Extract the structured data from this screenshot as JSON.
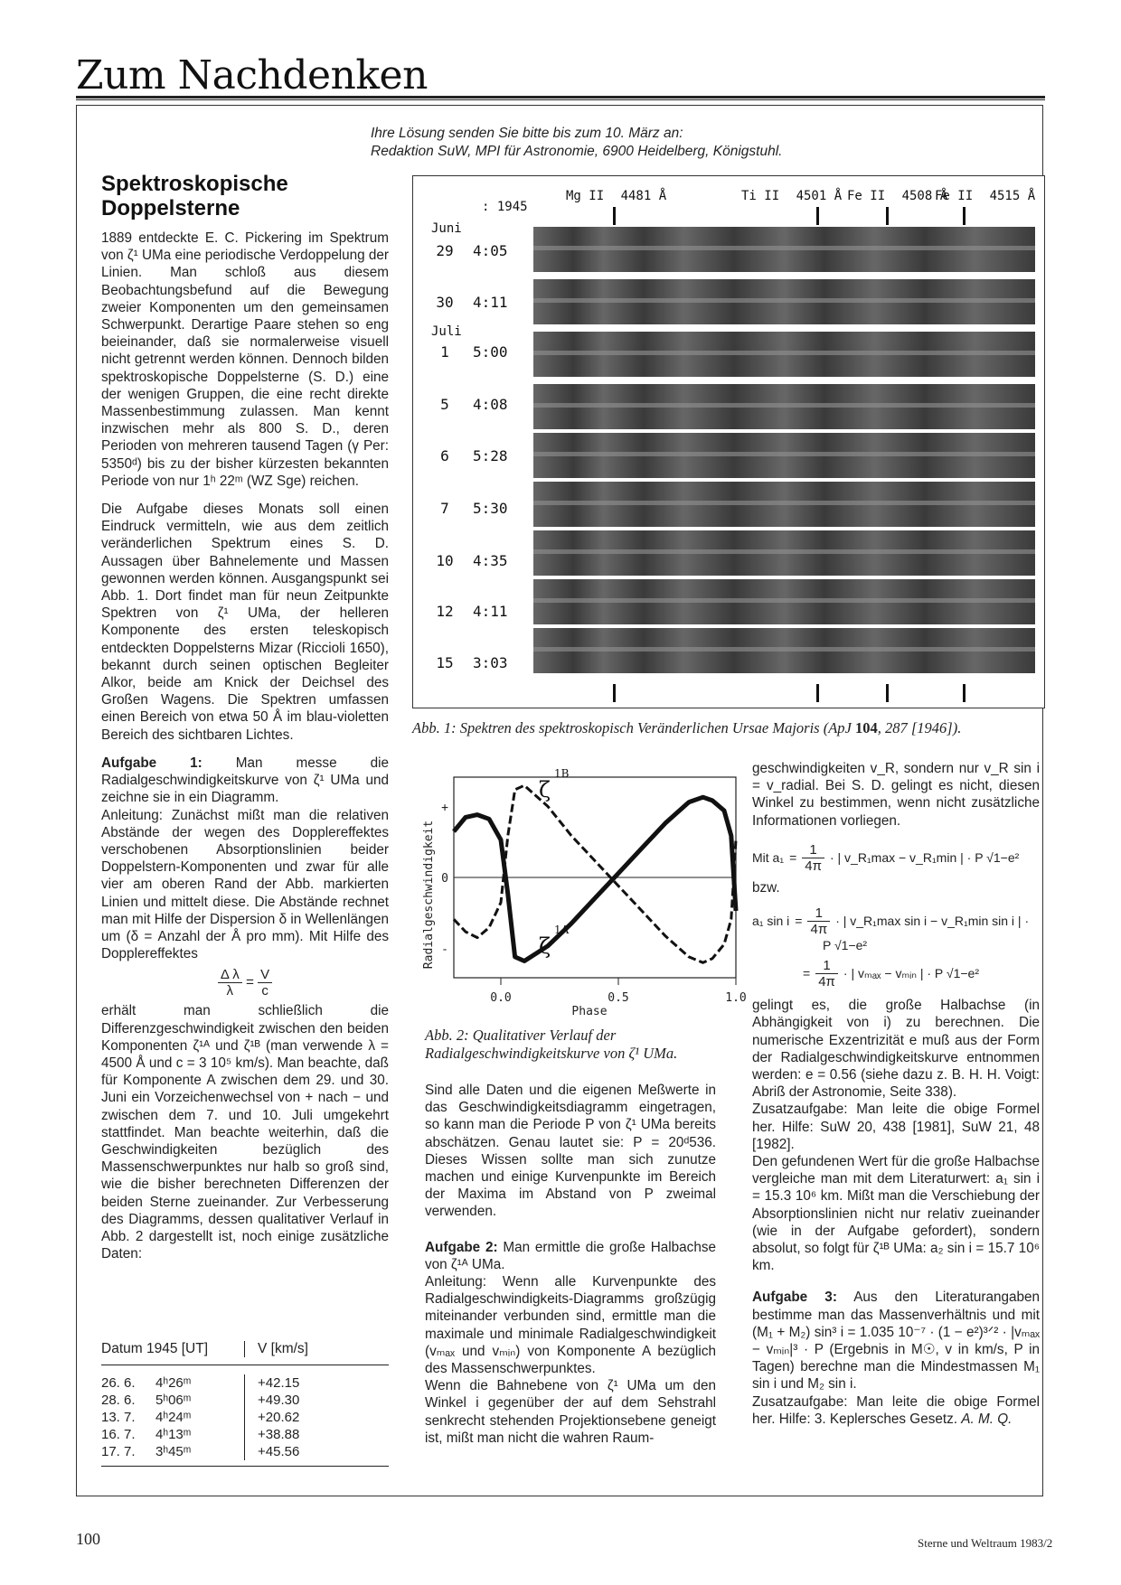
{
  "page_header": {
    "section_title": "Zum Nachdenken"
  },
  "article": {
    "title_l1": "Spektroskopische",
    "title_l2": "Doppelsterne",
    "intro_l1": "Ihre Lösung senden Sie bitte bis zum 10. März an:",
    "intro_l2": "Redaktion SuW, MPI für Astronomie, 6900 Heidelberg, Königstuhl.",
    "col1": {
      "p1": "1889 entdeckte E. C. Pickering im Spektrum von ζ¹ UMa eine periodische Verdoppelung der Linien. Man schloß aus diesem Beobachtungsbefund auf die Bewegung zweier Komponenten um den gemeinsamen Schwerpunkt. Derartige Paare stehen so eng beieinander, daß sie normalerweise visuell nicht getrennt werden können. Dennoch bilden spektroskopische Doppelsterne (S. D.) eine der wenigen Gruppen, die eine recht direkte Massenbestimmung zulassen. Man kennt inzwischen mehr als 800 S. D., deren Perioden von mehreren tausend Tagen (γ Per: 5350ᵈ) bis zu der bisher kürzesten bekannten Periode von nur 1ʰ 22ᵐ (WZ Sge) reichen.",
      "p2": "Die Aufgabe dieses Monats soll einen Eindruck vermitteln, wie aus dem zeitlich veränderlichen Spektrum eines S. D. Aussagen über Bahnelemente und Massen gewonnen werden können. Ausgangspunkt sei Abb. 1. Dort findet man für neun Zeitpunkte Spektren von ζ¹ UMa, der helleren Komponente des ersten teleskopisch entdeckten Doppelsterns Mizar (Riccioli 1650), bekannt durch seinen optischen Begleiter Alkor, beide am Knick der Deichsel des Großen Wagens. Die Spektren umfassen einen Bereich von etwa 50 Å im blau-violetten Bereich des sichtbaren Lichtes.",
      "a1_label": "Aufgabe 1:",
      "a1_text": " Man messe die Radialgeschwindigkeitskurve von ζ¹ UMa und zeichne sie in ein Diagramm.",
      "a1_hint": "Anleitung: Zunächst mißt man die relativen Abstände der wegen des Dopplereffektes verschobenen Absorptionslinien beider Doppelstern-Komponenten und zwar für alle vier am oberen Rand der Abb. markierten Linien und mittelt diese. Die Abstände rechnet man mit Hilfe der Dispersion δ in Wellenlängen um (δ = Anzahl der Å pro mm). Mit Hilfe des Dopplereffektes",
      "f_num_l": "Δ λ",
      "f_den_l": "λ",
      "f_eq": "=",
      "f_num_r": "V",
      "f_den_r": "c",
      "p3": "erhält man schließlich die Differenzgeschwindigkeit zwischen den beiden Komponenten ζ¹ᴬ und ζ¹ᴮ (man verwende λ = 4500 Å und c = 3 10⁵ km/s). Man beachte, daß für Komponente A zwischen dem 29. und 30. Juni ein Vorzeichenwechsel von + nach − und zwischen dem 7. und 10. Juli umgekehrt stattfindet. Man beachte weiterhin, daß die Geschwindigkeiten bezüglich des Massenschwerpunktes nur halb so groß sind, wie die bisher berechneten Differenzen der beiden Sterne zueinander. Zur Verbesserung des Diagramms, dessen qualitativer Verlauf in Abb. 2 dargestellt ist, noch einige zusätzliche Daten:",
      "table": {
        "h1": "Datum 1945 [UT]",
        "h2": "V [km/s]",
        "rows": [
          {
            "d": "26. 6.",
            "t": "4ʰ26ᵐ",
            "v": "+42.15"
          },
          {
            "d": "28. 6.",
            "t": "5ʰ06ᵐ",
            "v": "+49.30"
          },
          {
            "d": "13. 7.",
            "t": "4ʰ24ᵐ",
            "v": "+20.62"
          },
          {
            "d": "16. 7.",
            "t": "4ʰ13ᵐ",
            "v": "+38.88"
          },
          {
            "d": "17. 7.",
            "t": "3ʰ45ᵐ",
            "v": "+45.56"
          }
        ]
      }
    },
    "fig1": {
      "year": ": 1945",
      "month1": "Juni",
      "month2": "Juli",
      "lines": [
        {
          "el": "Mg II",
          "wl": "4481 Å"
        },
        {
          "el": "Ti II",
          "wl": "4501 Å"
        },
        {
          "el": "Fe II",
          "wl": "4508 Å"
        },
        {
          "el": "Fe II",
          "wl": "4515 Å"
        }
      ],
      "rows": [
        {
          "day": "29",
          "time": "4:05"
        },
        {
          "day": "30",
          "time": "4:11"
        },
        {
          "day": "1",
          "time": "5:00"
        },
        {
          "day": "5",
          "time": "4:08"
        },
        {
          "day": "6",
          "time": "5:28"
        },
        {
          "day": "7",
          "time": "5:30"
        },
        {
          "day": "10",
          "time": "4:35"
        },
        {
          "day": "12",
          "time": "4:11"
        },
        {
          "day": "15",
          "time": "3:03"
        }
      ],
      "caption_a": "Abb. 1: Spektren des spektroskopisch Veränderlichen Ursae Majoris (ApJ ",
      "caption_b": "104",
      "caption_c": ", 287 [1946]).",
      "colors": {
        "plate_dark": "#2a2a2a",
        "plate_mid": "#5a5a5a",
        "plate_light": "#8a8a8a"
      }
    },
    "fig2": {
      "chart_data": {
        "type": "line",
        "xlabel": "Phase",
        "ylabel": "Radialgeschwindigkeit",
        "x_ticks": [
          "0.0",
          "0.5",
          "1.0"
        ],
        "y_ticks": [
          "+",
          "0",
          "-"
        ],
        "xlim": [
          -0.2,
          1.0
        ],
        "ylim": [
          -1.2,
          1.2
        ],
        "series": [
          {
            "name": "ζ 1A",
            "style": "solid",
            "x": [
              -0.2,
              -0.15,
              -0.1,
              -0.05,
              0.0,
              0.03,
              0.06,
              0.1,
              0.2,
              0.3,
              0.4,
              0.5,
              0.6,
              0.7,
              0.8,
              0.86,
              0.9,
              0.95,
              0.98,
              1.0
            ],
            "y": [
              0.55,
              0.72,
              0.75,
              0.7,
              0.45,
              -0.2,
              -0.95,
              -1.0,
              -0.82,
              -0.55,
              -0.25,
              0.05,
              0.35,
              0.65,
              0.9,
              0.96,
              0.92,
              0.8,
              0.5,
              -0.4
            ]
          },
          {
            "name": "ζ 1B",
            "style": "dashed",
            "x": [
              -0.2,
              -0.15,
              -0.1,
              -0.05,
              0.0,
              0.03,
              0.06,
              0.1,
              0.2,
              0.3,
              0.4,
              0.5,
              0.6,
              0.7,
              0.8,
              0.86,
              0.9,
              0.95,
              0.98,
              1.0
            ],
            "y": [
              -0.5,
              -0.65,
              -0.72,
              -0.6,
              -0.3,
              0.5,
              1.05,
              1.1,
              0.85,
              0.5,
              0.2,
              -0.1,
              -0.4,
              -0.7,
              -0.95,
              -1.02,
              -0.97,
              -0.8,
              -0.5,
              0.45
            ]
          }
        ]
      },
      "label_1b_sym": "ζ",
      "label_1b_sup": "1B",
      "label_1a_sym": "ζ",
      "label_1a_sup": "1A",
      "caption": "Abb. 2: Qualitativer Verlauf der Radialgeschwindigkeitskurve von ζ¹ UMa."
    },
    "col2": {
      "p1": "Sind alle Daten und die eigenen Meßwerte in das Geschwindigkeitsdiagramm eingetragen, so kann man die Periode P von ζ¹ UMa bereits abschätzen. Genau lautet sie: P = 20ᵈ536. Dieses Wissen sollte man sich zunutze machen und einige Kurvenpunkte im Bereich der Maxima im Abstand von P zweimal verwenden.",
      "a2_label": "Aufgabe 2:",
      "a2_text": " Man ermittle die große Halbachse von ζ¹ᴬ UMa.",
      "a2_hint": "Anleitung: Wenn alle Kurvenpunkte des Radialgeschwindigkeits-Diagramms großzügig miteinander verbunden sind, ermittle man die maximale und minimale Radialgeschwindigkeit (vₘₐₓ und vₘᵢₙ) von Komponente A bezüglich des Massenschwerpunktes.",
      "p2": "Wenn die Bahnebene von ζ¹ UMa um den Winkel i gegenüber der auf dem Sehstrahl senkrecht stehenden Projektionsebene geneigt ist, mißt man nicht die wahren Raum-"
    },
    "col3": {
      "p1": "geschwindigkeiten v_R, sondern nur v_R sin i = v_radial. Bei S. D. gelingt es nicht, diesen Winkel zu bestimmen, wenn nicht zusätzliche Informationen vorliegen.",
      "eq1_pre": "Mit a₁",
      "eq_eq": "=",
      "eq_one": "1",
      "eq_4pi": "4π",
      "eq1_post": "· | v_R₁max − v_R₁min | · P √1−e²",
      "bzw": "bzw.",
      "eq2_pre": "a₁ sin i",
      "eq2_post": "· | v_R₁max sin i − v_R₁min sin i | ·",
      "eq2_cont": "P √1−e²",
      "eq3_post": "· | vₘₐₓ − vₘᵢₙ | · P √1−e²",
      "p2": "gelingt es, die große Halbachse (in Abhängigkeit von i) zu berechnen. Die numerische Exzentrizität e muß aus der Form der Radialgeschwindigkeitskurve entnommen werden: e = 0.56 (siehe dazu z. B. H. H. Voigt: Abriß der Astronomie, Seite 338).",
      "p3": "Zusatzaufgabe: Man leite die obige Formel her. Hilfe: SuW 20, 438 [1981], SuW 21, 48 [1982].",
      "p4": "Den gefundenen Wert für die große Halbachse vergleiche man mit dem Literaturwert: a₁ sin i = 15.3 10⁶ km. Mißt man die Verschiebung der Absorptionslinien nicht nur relativ zueinander (wie in der Aufgabe gefordert), sondern absolut, so folgt für ζ¹ᴮ UMa: a₂ sin i = 15.7 10⁶ km.",
      "a3_label": "Aufgabe 3:",
      "a3_text": " Aus den Literaturangaben bestimme man das Massenverhältnis und mit (M₁ + M₂) sin³ i = 1.035 10⁻⁷ · (1 − e²)³ᐟ² · |vₘₐₓ − vₘᵢₙ|³ · P (Ergebnis in M☉, v in km/s, P in Tagen) berechne man die Mindestmassen M₁ sin i und M₂ sin i.",
      "p5": "Zusatzaufgabe: Man leite die obige Formel her. Hilfe: 3. Keplersches Gesetz.",
      "signature": "A. M. Q."
    }
  },
  "footer": {
    "page_number": "100",
    "journal": "Sterne und Weltraum 1983/2"
  }
}
